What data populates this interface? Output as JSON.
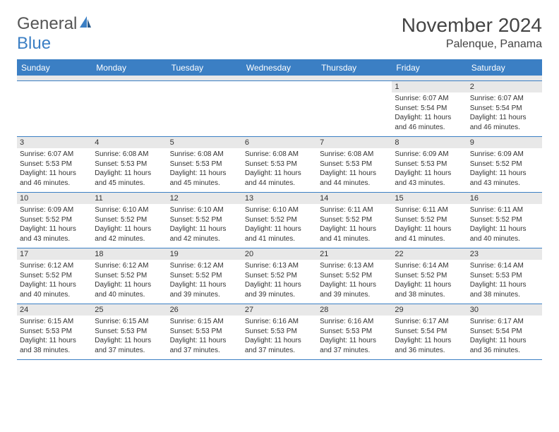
{
  "logo": {
    "text1": "General",
    "text2": "Blue"
  },
  "title": "November 2024",
  "location": "Palenque, Panama",
  "colors": {
    "header_bg": "#3b7fc4",
    "header_text": "#ffffff",
    "daynum_bg": "#e8e8e8",
    "border": "#3b7fc4",
    "text": "#333333",
    "title_text": "#444444"
  },
  "typography": {
    "title_fontsize": 28,
    "location_fontsize": 16,
    "dayhead_fontsize": 12,
    "daynum_fontsize": 11,
    "body_fontsize": 10
  },
  "layout": {
    "columns": 7,
    "rows": 5,
    "cell_min_height": 78
  },
  "day_names": [
    "Sunday",
    "Monday",
    "Tuesday",
    "Wednesday",
    "Thursday",
    "Friday",
    "Saturday"
  ],
  "weeks": [
    [
      {
        "empty": true
      },
      {
        "empty": true
      },
      {
        "empty": true
      },
      {
        "empty": true
      },
      {
        "empty": true
      },
      {
        "num": "1",
        "sunrise": "Sunrise: 6:07 AM",
        "sunset": "Sunset: 5:54 PM",
        "daylight": "Daylight: 11 hours and 46 minutes."
      },
      {
        "num": "2",
        "sunrise": "Sunrise: 6:07 AM",
        "sunset": "Sunset: 5:54 PM",
        "daylight": "Daylight: 11 hours and 46 minutes."
      }
    ],
    [
      {
        "num": "3",
        "sunrise": "Sunrise: 6:07 AM",
        "sunset": "Sunset: 5:53 PM",
        "daylight": "Daylight: 11 hours and 46 minutes."
      },
      {
        "num": "4",
        "sunrise": "Sunrise: 6:08 AM",
        "sunset": "Sunset: 5:53 PM",
        "daylight": "Daylight: 11 hours and 45 minutes."
      },
      {
        "num": "5",
        "sunrise": "Sunrise: 6:08 AM",
        "sunset": "Sunset: 5:53 PM",
        "daylight": "Daylight: 11 hours and 45 minutes."
      },
      {
        "num": "6",
        "sunrise": "Sunrise: 6:08 AM",
        "sunset": "Sunset: 5:53 PM",
        "daylight": "Daylight: 11 hours and 44 minutes."
      },
      {
        "num": "7",
        "sunrise": "Sunrise: 6:08 AM",
        "sunset": "Sunset: 5:53 PM",
        "daylight": "Daylight: 11 hours and 44 minutes."
      },
      {
        "num": "8",
        "sunrise": "Sunrise: 6:09 AM",
        "sunset": "Sunset: 5:53 PM",
        "daylight": "Daylight: 11 hours and 43 minutes."
      },
      {
        "num": "9",
        "sunrise": "Sunrise: 6:09 AM",
        "sunset": "Sunset: 5:52 PM",
        "daylight": "Daylight: 11 hours and 43 minutes."
      }
    ],
    [
      {
        "num": "10",
        "sunrise": "Sunrise: 6:09 AM",
        "sunset": "Sunset: 5:52 PM",
        "daylight": "Daylight: 11 hours and 43 minutes."
      },
      {
        "num": "11",
        "sunrise": "Sunrise: 6:10 AM",
        "sunset": "Sunset: 5:52 PM",
        "daylight": "Daylight: 11 hours and 42 minutes."
      },
      {
        "num": "12",
        "sunrise": "Sunrise: 6:10 AM",
        "sunset": "Sunset: 5:52 PM",
        "daylight": "Daylight: 11 hours and 42 minutes."
      },
      {
        "num": "13",
        "sunrise": "Sunrise: 6:10 AM",
        "sunset": "Sunset: 5:52 PM",
        "daylight": "Daylight: 11 hours and 41 minutes."
      },
      {
        "num": "14",
        "sunrise": "Sunrise: 6:11 AM",
        "sunset": "Sunset: 5:52 PM",
        "daylight": "Daylight: 11 hours and 41 minutes."
      },
      {
        "num": "15",
        "sunrise": "Sunrise: 6:11 AM",
        "sunset": "Sunset: 5:52 PM",
        "daylight": "Daylight: 11 hours and 41 minutes."
      },
      {
        "num": "16",
        "sunrise": "Sunrise: 6:11 AM",
        "sunset": "Sunset: 5:52 PM",
        "daylight": "Daylight: 11 hours and 40 minutes."
      }
    ],
    [
      {
        "num": "17",
        "sunrise": "Sunrise: 6:12 AM",
        "sunset": "Sunset: 5:52 PM",
        "daylight": "Daylight: 11 hours and 40 minutes."
      },
      {
        "num": "18",
        "sunrise": "Sunrise: 6:12 AM",
        "sunset": "Sunset: 5:52 PM",
        "daylight": "Daylight: 11 hours and 40 minutes."
      },
      {
        "num": "19",
        "sunrise": "Sunrise: 6:12 AM",
        "sunset": "Sunset: 5:52 PM",
        "daylight": "Daylight: 11 hours and 39 minutes."
      },
      {
        "num": "20",
        "sunrise": "Sunrise: 6:13 AM",
        "sunset": "Sunset: 5:52 PM",
        "daylight": "Daylight: 11 hours and 39 minutes."
      },
      {
        "num": "21",
        "sunrise": "Sunrise: 6:13 AM",
        "sunset": "Sunset: 5:52 PM",
        "daylight": "Daylight: 11 hours and 39 minutes."
      },
      {
        "num": "22",
        "sunrise": "Sunrise: 6:14 AM",
        "sunset": "Sunset: 5:52 PM",
        "daylight": "Daylight: 11 hours and 38 minutes."
      },
      {
        "num": "23",
        "sunrise": "Sunrise: 6:14 AM",
        "sunset": "Sunset: 5:53 PM",
        "daylight": "Daylight: 11 hours and 38 minutes."
      }
    ],
    [
      {
        "num": "24",
        "sunrise": "Sunrise: 6:15 AM",
        "sunset": "Sunset: 5:53 PM",
        "daylight": "Daylight: 11 hours and 38 minutes."
      },
      {
        "num": "25",
        "sunrise": "Sunrise: 6:15 AM",
        "sunset": "Sunset: 5:53 PM",
        "daylight": "Daylight: 11 hours and 37 minutes."
      },
      {
        "num": "26",
        "sunrise": "Sunrise: 6:15 AM",
        "sunset": "Sunset: 5:53 PM",
        "daylight": "Daylight: 11 hours and 37 minutes."
      },
      {
        "num": "27",
        "sunrise": "Sunrise: 6:16 AM",
        "sunset": "Sunset: 5:53 PM",
        "daylight": "Daylight: 11 hours and 37 minutes."
      },
      {
        "num": "28",
        "sunrise": "Sunrise: 6:16 AM",
        "sunset": "Sunset: 5:53 PM",
        "daylight": "Daylight: 11 hours and 37 minutes."
      },
      {
        "num": "29",
        "sunrise": "Sunrise: 6:17 AM",
        "sunset": "Sunset: 5:54 PM",
        "daylight": "Daylight: 11 hours and 36 minutes."
      },
      {
        "num": "30",
        "sunrise": "Sunrise: 6:17 AM",
        "sunset": "Sunset: 5:54 PM",
        "daylight": "Daylight: 11 hours and 36 minutes."
      }
    ]
  ]
}
